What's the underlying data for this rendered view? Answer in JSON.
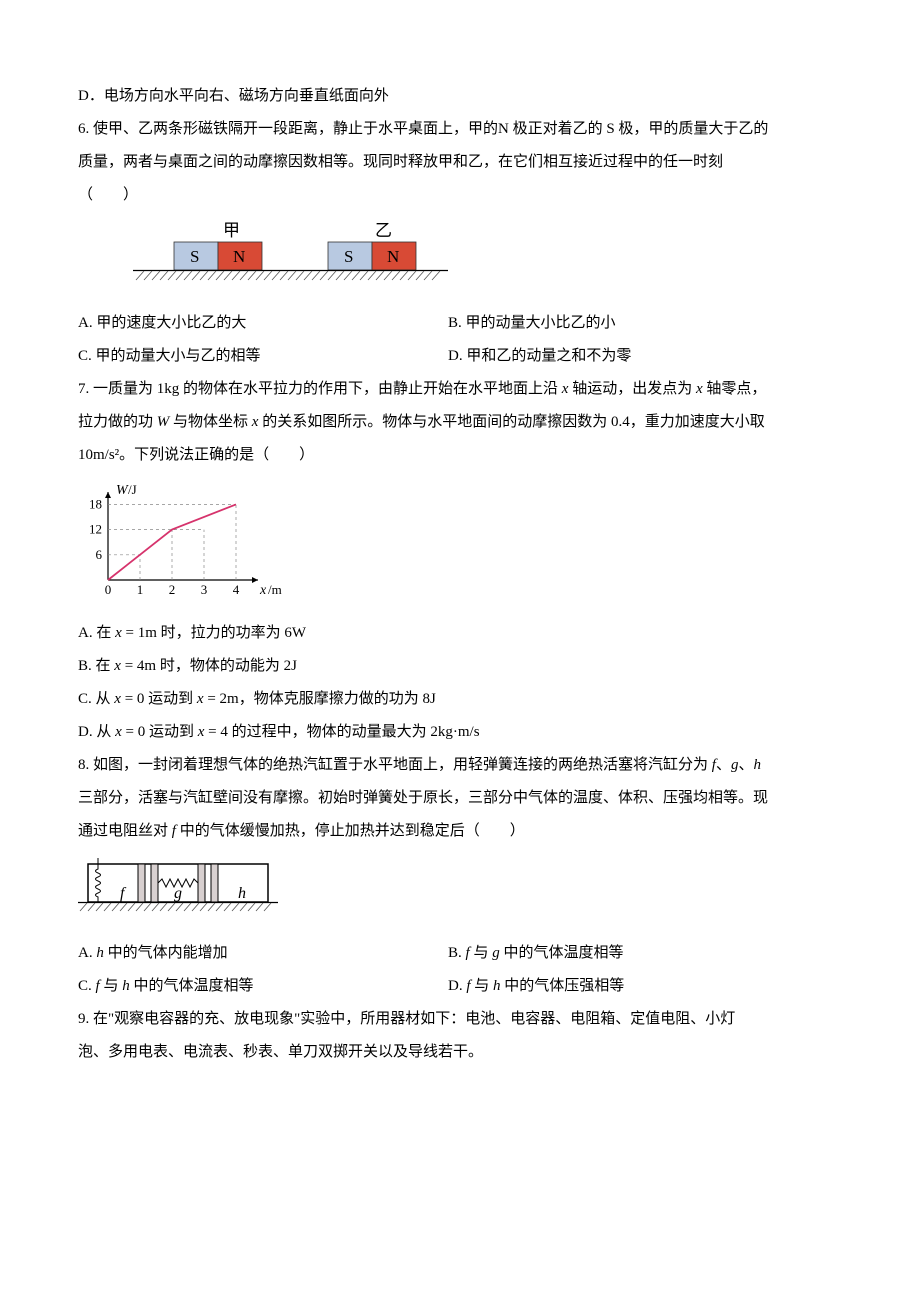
{
  "q5": {
    "optD": "D．电场方向水平向右、磁场方向垂直纸面向外"
  },
  "q6": {
    "stem_l1": "6. 使甲、乙两条形磁铁隔开一段距离，静止于水平桌面上，甲的N 极正对着乙的 S 极，甲的质量大于乙的",
    "stem_l2": "质量，两者与桌面之间的动摩擦因数相等。现同时释放甲和乙，在它们相互接近过程中的任一时刻",
    "stem_l3": "（　　）",
    "optA": "A. 甲的速度大小比乙的大",
    "optB": "B. 甲的动量大小比乙的小",
    "optC": "C. 甲的动量大小与乙的相等",
    "optD": "D. 甲和乙的动量之和不为零",
    "diagram": {
      "label_jia": "甲",
      "label_yi": "乙",
      "S": "S",
      "N": "N",
      "colors": {
        "S_bg": "#b8c9e1",
        "N_bg": "#d84a35",
        "hatch": "#555"
      }
    }
  },
  "q7": {
    "stem_l1_p1": "7. 一质量为 1kg 的物体在水平拉力的作用下，由静止开始在水平地面上沿 ",
    "stem_l1_x1": "x",
    "stem_l1_p2": " 轴运动，出发点为 ",
    "stem_l1_x2": "x",
    "stem_l1_p3": " 轴零点，",
    "stem_l2_p1": "拉力做的功 ",
    "stem_l2_W": "W",
    "stem_l2_p2": " 与物体坐标 ",
    "stem_l2_x": "x",
    "stem_l2_p3": " 的关系如图所示。物体与水平地面间的动摩擦因数为 0.4，重力加速度大小取",
    "stem_l3": "10m/s²。下列说法正确的是（　　）",
    "optA_p1": "A. 在 ",
    "optA_x": "x",
    "optA_p2": " = 1m 时，拉力的功率为 6W",
    "optB_p1": "B. 在 ",
    "optB_x": "x",
    "optB_p2": " = 4m 时，物体的动能为 2J",
    "optC_p1": "C. 从 ",
    "optC_x1": "x",
    "optC_p2": " = 0 运动到 ",
    "optC_x2": "x",
    "optC_p3": " = 2m，物体克服摩擦力做的功为 8J",
    "optD_p1": "D. 从 ",
    "optD_x1": "x",
    "optD_p2": " = 0 运动到 ",
    "optD_x2": "x",
    "optD_p3": " = 4 的过程中，物体的动量最大为 2kg·m/s",
    "graph": {
      "y_label": "W/J",
      "x_label": "x/m",
      "y_ticks": [
        "6",
        "12",
        "18"
      ],
      "x_ticks": [
        "0",
        "1",
        "2",
        "3",
        "4"
      ],
      "points": [
        [
          0,
          0
        ],
        [
          2,
          12
        ],
        [
          4,
          18
        ]
      ],
      "xlim": [
        0,
        4.5
      ],
      "ylim": [
        0,
        19
      ],
      "line_color": "#d6336c",
      "dash_color": "#888"
    }
  },
  "q8": {
    "stem_l1_p1": "8. 如图，一封闭着理想气体的绝热汽缸置于水平地面上，用轻弹簧连接的两绝热活塞将汽缸分为 ",
    "stem_l1_f": "f",
    "stem_l1_p2": "、",
    "stem_l1_g": "g",
    "stem_l1_p3": "、",
    "stem_l1_h": "h",
    "stem_l2_p1": "三部分，活塞与汽缸壁间没有摩擦。初始时弹簧处于原长，三部分中气体的温度、体积、压强均相等。现",
    "stem_l3_p1": "通过电阻丝对 ",
    "stem_l3_f": "f",
    "stem_l3_p2": " 中的气体缓慢加热，停止加热并达到稳定后（　　）",
    "optA_p1": "A. ",
    "optA_h": "h",
    "optA_p2": " 中的气体内能增加",
    "optB_p1": "B. ",
    "optB_f": "f",
    "optB_p2": " 与 ",
    "optB_g": "g",
    "optB_p3": " 中的气体温度相等",
    "optC_p1": "C. ",
    "optC_f": "f",
    "optC_p2": " 与 ",
    "optC_h": "h",
    "optC_p3": " 中的气体温度相等",
    "optD_p1": "D. ",
    "optD_f": "f",
    "optD_p2": " 与 ",
    "optD_h": "h",
    "optD_p3": " 中的气体压强相等",
    "diagram": {
      "f": "f",
      "g": "g",
      "h": "h"
    }
  },
  "q9": {
    "stem_l1": "9. 在\"观察电容器的充、放电现象\"实验中，所用器材如下：电池、电容器、电阻箱、定值电阻、小灯",
    "stem_l2": "泡、多用电表、电流表、秒表、单刀双掷开关以及导线若干。"
  }
}
